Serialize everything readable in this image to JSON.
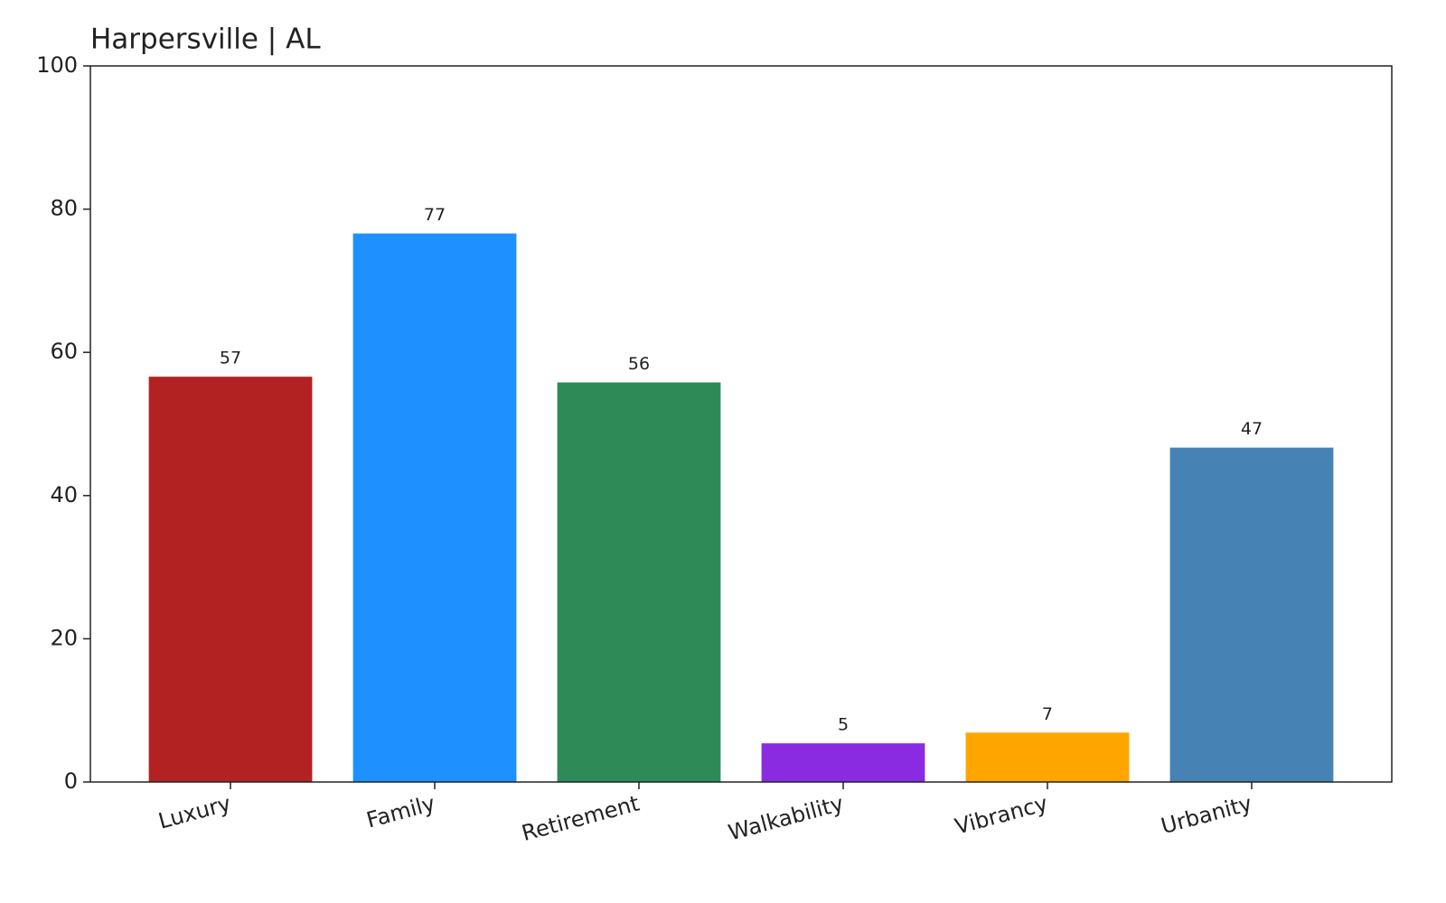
{
  "chart_data": {
    "type": "bar",
    "title": "Harpersville | AL",
    "categories": [
      "Luxury",
      "Family",
      "Retirement",
      "Walkability",
      "Vibrancy",
      "Urbanity"
    ],
    "values": [
      56.6,
      76.6,
      55.8,
      5.4,
      6.9,
      46.7
    ],
    "value_labels": [
      "57",
      "77",
      "56",
      "5",
      "7",
      "47"
    ],
    "colors": [
      "#b22222",
      "#1e90ff",
      "#2e8b57",
      "#8a2be2",
      "#ffa500",
      "#4682b4"
    ],
    "ylim": [
      0,
      100
    ],
    "yticks": [
      0,
      20,
      40,
      60,
      80,
      100
    ],
    "grid": false
  }
}
